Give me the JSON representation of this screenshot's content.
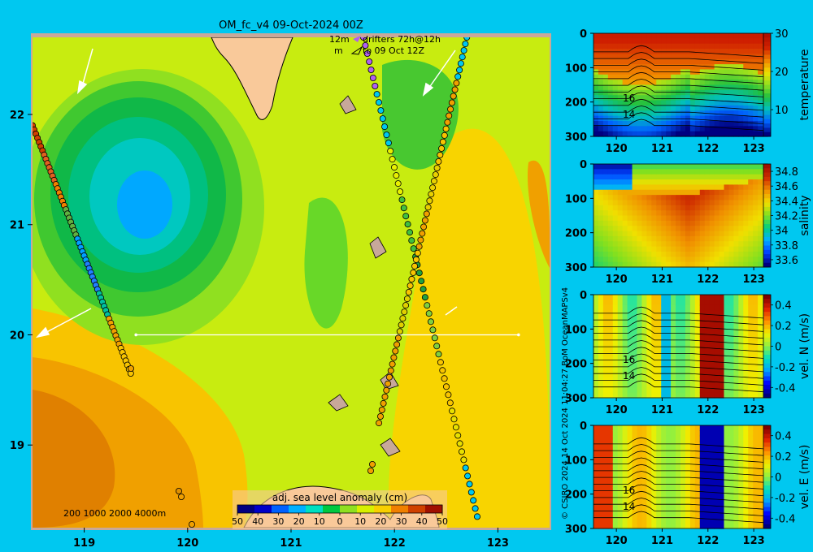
{
  "title": "OM_fc_v4  09-Oct-2024 00Z",
  "credit": "© CSIRO 2024   14 Oct 2024 11:04:27 BoM OceanMAPSv4",
  "colors": {
    "background": "#00c8f0",
    "land": "#f9c99a",
    "frame": "#c8a89a"
  },
  "map": {
    "x_ticks": [
      119,
      120,
      121,
      122,
      123
    ],
    "y_ticks": [
      19,
      20,
      21,
      22
    ],
    "xlim": [
      118.5,
      123.5
    ],
    "ylim": [
      18.25,
      22.7
    ],
    "drifter_legend": {
      "line1_left": "12m",
      "line1_right": "drifters 72h@12h",
      "line2_left": "m",
      "line2_right": "to 09 Oct 12Z"
    },
    "depth_legend": "200  1000  2000  4000m",
    "colorbar": {
      "title": "adj. sea level anomaly (cm)",
      "tick_labels": [
        "50",
        "40",
        "30",
        "20",
        "10",
        "0",
        "10",
        "20",
        "30",
        "40",
        "50"
      ],
      "range": [
        -50,
        50
      ],
      "colors": [
        "#000080",
        "#0000c8",
        "#0060ff",
        "#00b0ff",
        "#00e0c0",
        "#00c840",
        "#90e020",
        "#d8f000",
        "#f8d000",
        "#f08000",
        "#d04000",
        "#a01000"
      ]
    },
    "section": {
      "lat": 20.0,
      "lon_start": 119.5,
      "lon_end": 123.2
    },
    "drifters": [
      {
        "lon": [
          118.5,
          119.45
        ],
        "lat": [
          21.9,
          19.65
        ]
      },
      {
        "lon": [
          121.7,
          122.8
        ],
        "lat": [
          22.7,
          18.35
        ]
      },
      {
        "lon": [
          122.7,
          121.85
        ],
        "lat": [
          22.7,
          19.2
        ]
      }
    ]
  },
  "chart_data": [
    {
      "type": "heatmap",
      "title": "",
      "ylabel": "temperature",
      "x_ticks": [
        120,
        121,
        122,
        123
      ],
      "y_ticks": [
        0,
        100,
        200,
        300
      ],
      "xlim": [
        119.5,
        123.3
      ],
      "ylim": [
        300,
        0
      ],
      "colorbar_ticks": [
        10,
        20,
        30
      ],
      "colorbar_range": [
        3,
        30
      ],
      "contour_labels": [
        "16",
        "14"
      ]
    },
    {
      "type": "heatmap",
      "title": "",
      "ylabel": "salinity",
      "x_ticks": [
        120,
        121,
        122,
        123
      ],
      "y_ticks": [
        0,
        100,
        200,
        300
      ],
      "xlim": [
        119.5,
        123.3
      ],
      "ylim": [
        300,
        0
      ],
      "colorbar_ticks": [
        "34.8",
        "34.6",
        "34.4",
        "34.2",
        "34",
        "33.8",
        "33.6"
      ],
      "colorbar_range": [
        33.5,
        34.9
      ]
    },
    {
      "type": "heatmap",
      "title": "",
      "ylabel": "vel. N (m/s)",
      "x_ticks": [
        120,
        121,
        122,
        123
      ],
      "y_ticks": [
        0,
        100,
        200,
        300
      ],
      "xlim": [
        119.5,
        123.3
      ],
      "ylim": [
        300,
        0
      ],
      "colorbar_ticks": [
        "0.4",
        "0.2",
        "0",
        "-0.2",
        "-0.4"
      ],
      "colorbar_range": [
        -0.5,
        0.5
      ],
      "contour_labels": [
        "16",
        "14"
      ]
    },
    {
      "type": "heatmap",
      "title": "",
      "ylabel": "vel. E (m/s)",
      "x_ticks": [
        120,
        121,
        122,
        123
      ],
      "y_ticks": [
        0,
        100,
        200,
        300
      ],
      "xlim": [
        119.5,
        123.3
      ],
      "ylim": [
        300,
        0
      ],
      "colorbar_ticks": [
        "0.4",
        "0.2",
        "0",
        "-0.2",
        "-0.4"
      ],
      "colorbar_range": [
        -0.5,
        0.5
      ],
      "contour_labels": [
        "16",
        "14"
      ]
    }
  ]
}
